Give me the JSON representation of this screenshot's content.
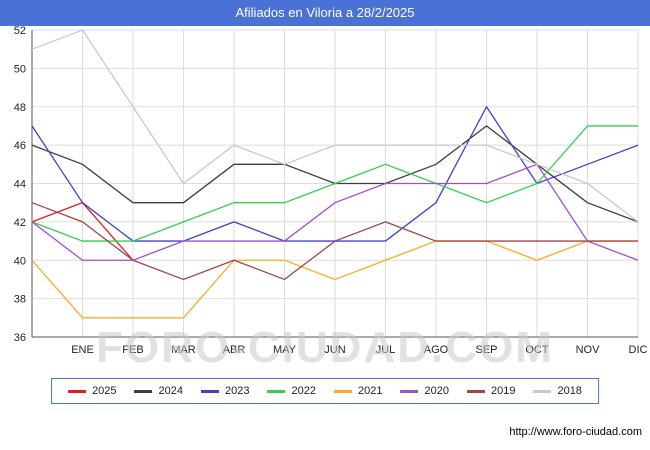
{
  "header": {
    "title": "Afiliados en Viloria a 28/2/2025"
  },
  "watermark": "FORO-CIUDAD.COM",
  "footer": {
    "url": "http://www.foro-ciudad.com"
  },
  "chart_data": {
    "type": "line",
    "title": "Afiliados en Viloria a 28/2/2025",
    "xlabel": "",
    "ylabel": "",
    "ylim": [
      36,
      52
    ],
    "y_ticks": [
      36,
      38,
      40,
      42,
      44,
      46,
      48,
      50,
      52
    ],
    "grid": true,
    "legend_position": "bottom",
    "x_labels": [
      "",
      "ENE",
      "FEB",
      "MAR",
      "ABR",
      "MAY",
      "JUN",
      "JUL",
      "AGO",
      "SEP",
      "OCT",
      "NOV",
      "DIC"
    ],
    "series": [
      {
        "name": "2025",
        "color": "#e51c1c",
        "values": [
          42,
          43,
          40,
          null,
          null,
          null,
          null,
          null,
          null,
          null,
          null,
          null,
          null
        ]
      },
      {
        "name": "2024",
        "color": "#3d3d3d",
        "values": [
          46,
          45,
          43,
          43,
          45,
          45,
          44,
          44,
          45,
          47,
          45,
          43,
          42
        ]
      },
      {
        "name": "2023",
        "color": "#4040d0",
        "values": [
          47,
          43,
          41,
          41,
          42,
          41,
          41,
          41,
          43,
          48,
          44,
          45,
          46
        ]
      },
      {
        "name": "2022",
        "color": "#35d04b",
        "values": [
          42,
          41,
          41,
          42,
          43,
          43,
          44,
          45,
          44,
          43,
          44,
          47,
          47
        ]
      },
      {
        "name": "2021",
        "color": "#ffaa22",
        "values": [
          40,
          37,
          37,
          37,
          40,
          40,
          39,
          40,
          41,
          41,
          40,
          41,
          41
        ]
      },
      {
        "name": "2020",
        "color": "#9e4fd0",
        "values": [
          42,
          40,
          40,
          41,
          41,
          41,
          43,
          44,
          44,
          44,
          45,
          41,
          40
        ]
      },
      {
        "name": "2019",
        "color": "#a04848",
        "values": [
          43,
          42,
          40,
          39,
          40,
          39,
          41,
          42,
          41,
          41,
          41,
          41,
          41
        ]
      },
      {
        "name": "2018",
        "color": "#c9c9c9",
        "values": [
          51,
          52,
          48,
          44,
          46,
          45,
          46,
          46,
          46,
          46,
          45,
          44,
          42
        ]
      }
    ]
  }
}
